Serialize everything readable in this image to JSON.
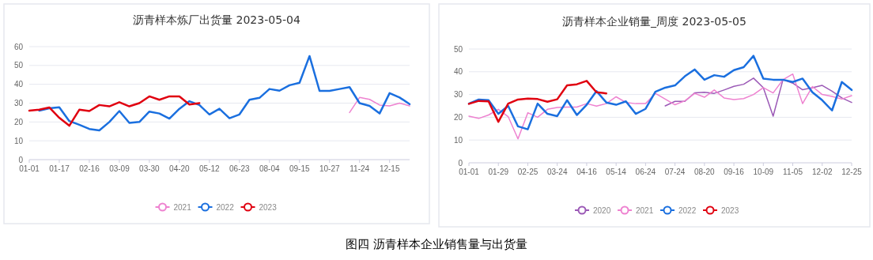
{
  "chart_data": [
    {
      "type": "line",
      "title": "沥青样本炼厂出货量 2023-05-04",
      "categories": [
        "01-01",
        null,
        null,
        "01-17",
        null,
        null,
        "02-16",
        null,
        null,
        "03-09",
        null,
        null,
        "03-30",
        null,
        null,
        "04-20",
        null,
        null,
        "05-12",
        null,
        null,
        "06-23",
        null,
        null,
        "08-04",
        null,
        null,
        "09-15",
        null,
        null,
        "10-27",
        null,
        null,
        "11-24",
        null,
        null,
        "12-15",
        null,
        null
      ],
      "series": [
        {
          "name": "2021",
          "color": "#ee82d0",
          "values": [
            null,
            null,
            null,
            null,
            null,
            null,
            null,
            null,
            null,
            null,
            null,
            null,
            null,
            null,
            null,
            null,
            null,
            null,
            null,
            null,
            null,
            null,
            null,
            null,
            null,
            null,
            null,
            null,
            null,
            null,
            null,
            null,
            25,
            33,
            32,
            29,
            28.5,
            30,
            28.5
          ]
        },
        {
          "name": "2022",
          "color": "#1a6fdf",
          "values": [
            null,
            26,
            27.3,
            27.8,
            20.5,
            18.5,
            16.3,
            15.5,
            20,
            25.8,
            19.5,
            20,
            25.5,
            24.5,
            21.8,
            27,
            31,
            29,
            24,
            27,
            22,
            24,
            31.8,
            32.8,
            37.5,
            36.6,
            39.5,
            40.8,
            55,
            36.5,
            36.5,
            37.5,
            38.5,
            30,
            28.5,
            24.5,
            35.3,
            33,
            29.5
          ]
        },
        {
          "name": "2023",
          "color": "#e00010",
          "values": [
            26,
            26.5,
            27.7,
            22.2,
            18,
            26.5,
            25.8,
            29,
            28.3,
            30.5,
            28.3,
            30,
            33.6,
            31.8,
            33.6,
            33.6,
            29.3,
            30,
            null,
            null,
            null,
            null,
            null,
            null,
            null,
            null,
            null,
            null,
            null,
            null,
            null,
            null,
            null,
            null,
            null,
            null,
            null,
            null,
            null
          ]
        }
      ],
      "ylim": [
        0,
        60
      ],
      "yticks": [
        0,
        10,
        20,
        30,
        40,
        50,
        60
      ],
      "grid": "y",
      "legend": "bottom",
      "marker": "none"
    },
    {
      "type": "line",
      "title": "沥青样本企业销量_周度 2023-05-05",
      "categories": [
        "01-01",
        null,
        null,
        "01-29",
        null,
        null,
        "02-25",
        null,
        null,
        "03-24",
        null,
        null,
        "04-16",
        null,
        null,
        "05-14",
        null,
        null,
        "06-24",
        null,
        null,
        "07-24",
        null,
        null,
        "08-20",
        null,
        null,
        "09-16",
        null,
        null,
        "10-09",
        null,
        null,
        "11-05",
        null,
        null,
        "12-02",
        null,
        null,
        "12-25"
      ],
      "series": [
        {
          "name": "2020",
          "color": "#9b59b6",
          "values": [
            null,
            null,
            null,
            null,
            null,
            null,
            null,
            null,
            null,
            null,
            null,
            null,
            null,
            null,
            null,
            null,
            null,
            null,
            null,
            null,
            25,
            27,
            27,
            30.7,
            31,
            30.5,
            32,
            33.6,
            34.5,
            37.2,
            33,
            20.5,
            36.5,
            35,
            32.1,
            33,
            34,
            31.5,
            28.5,
            26.5
          ]
        },
        {
          "name": "2021",
          "color": "#ee82d0",
          "values": [
            20.5,
            19.5,
            21,
            23.5,
            20.3,
            10.5,
            22,
            20,
            23.5,
            24.3,
            24.5,
            24.5,
            26,
            24.9,
            26,
            29,
            26.5,
            26,
            26,
            30.5,
            28,
            25.5,
            27.2,
            30.5,
            28.8,
            32,
            28.5,
            27.8,
            28.2,
            30,
            33,
            30.7,
            36.5,
            39,
            26,
            33.5,
            30,
            29.2,
            28,
            29.5
          ]
        },
        {
          "name": "2022",
          "color": "#1a6fdf",
          "values": [
            26,
            27.8,
            27.5,
            21.5,
            25,
            16,
            14.7,
            26,
            21.5,
            20.5,
            27.5,
            21,
            25.5,
            31.5,
            26.5,
            25.5,
            27,
            21.5,
            23.7,
            31.2,
            33,
            34,
            38,
            41,
            36.5,
            38.5,
            37.8,
            40.7,
            42,
            47,
            37,
            36.5,
            36.5,
            35.5,
            37,
            31,
            27.5,
            23,
            35.5,
            32
          ]
        },
        {
          "name": "2023",
          "color": "#e00010",
          "values": [
            25.9,
            27.2,
            27,
            18,
            26,
            27.8,
            28.2,
            28,
            26.8,
            27.9,
            34,
            34.5,
            36,
            31,
            30.5,
            null,
            null,
            null,
            null,
            null,
            null,
            null,
            null,
            null,
            null,
            null,
            null,
            null,
            null,
            null,
            null,
            null,
            null,
            null,
            null,
            null,
            null,
            null,
            null,
            null
          ]
        }
      ],
      "ylim": [
        0,
        50
      ],
      "yticks": [
        0,
        10,
        20,
        30,
        40,
        50
      ],
      "grid": "y",
      "legend": "bottom",
      "marker": "none",
      "annotations": [
        "图四  沥青样本企业销售量与出货量"
      ]
    }
  ]
}
